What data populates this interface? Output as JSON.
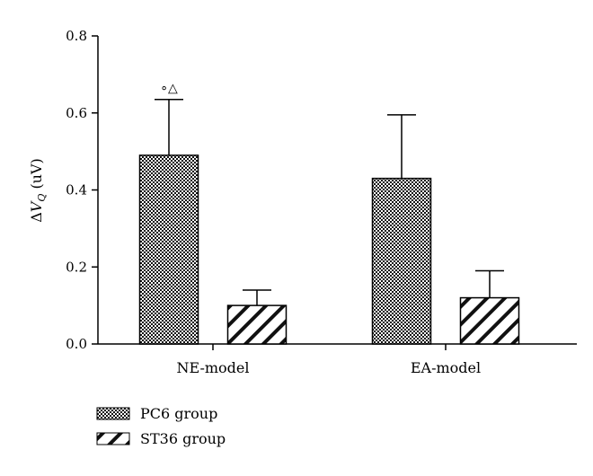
{
  "chart_data": {
    "type": "bar",
    "categories": [
      "NE-model",
      "EA-model"
    ],
    "series": [
      {
        "name": "PC6 group",
        "values": [
          0.49,
          0.43
        ],
        "errors": [
          0.145,
          0.165
        ],
        "pattern": "checker"
      },
      {
        "name": "ST36 group",
        "values": [
          0.1,
          0.12
        ],
        "errors": [
          0.04,
          0.07
        ],
        "pattern": "diagonal"
      }
    ],
    "ylabel": {
      "delta": "Δ",
      "var": "V",
      "sub": "Q",
      "unit": " (uV)"
    },
    "ylim": [
      0,
      0.8
    ],
    "yticks": [
      "0.0",
      "0.2",
      "0.4",
      "0.6",
      "0.8"
    ],
    "annotation": "∘△",
    "legend_position": "bottom-left",
    "grid": false
  }
}
